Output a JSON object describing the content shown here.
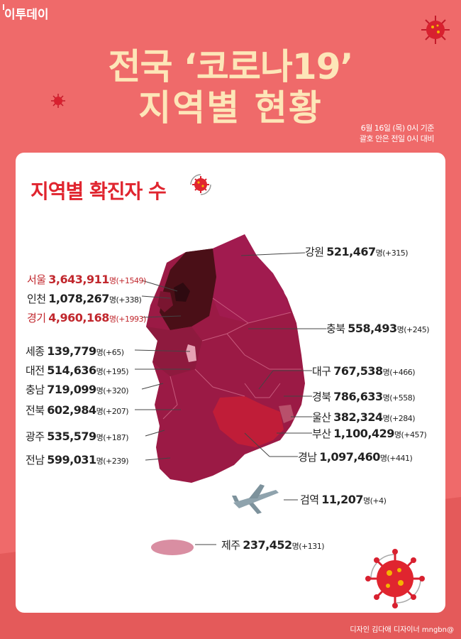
{
  "brand": "이투데이",
  "title_line1": "전국 ‘코로나19’",
  "title_line2": "지역별 현황",
  "note_line1": "6월 16일 (목) 0시 기준",
  "note_line2": "괄호 안은 전일 0시 대비",
  "card_title": "지역별 확진자 수",
  "unit": "명",
  "regions": [
    {
      "name": "서울",
      "count": "3,643,911",
      "diff": "(+1549)",
      "highlight": true
    },
    {
      "name": "인천",
      "count": "1,078,267",
      "diff": "(+338)",
      "highlight": false
    },
    {
      "name": "경기",
      "count": "4,960,168",
      "diff": "(+1993)",
      "highlight": true
    },
    {
      "name": "세종",
      "count": "139,779",
      "diff": "(+65)",
      "highlight": false
    },
    {
      "name": "대전",
      "count": "514,636",
      "diff": "(+195)",
      "highlight": false
    },
    {
      "name": "충남",
      "count": "719,099",
      "diff": "(+320)",
      "highlight": false
    },
    {
      "name": "전북",
      "count": "602,984",
      "diff": "(+207)",
      "highlight": false
    },
    {
      "name": "광주",
      "count": "535,579",
      "diff": "(+187)",
      "highlight": false
    },
    {
      "name": "전남",
      "count": "599,031",
      "diff": "(+239)",
      "highlight": false
    },
    {
      "name": "강원",
      "count": "521,467",
      "diff": "(+315)",
      "highlight": false
    },
    {
      "name": "충북",
      "count": "558,493",
      "diff": "(+245)",
      "highlight": false
    },
    {
      "name": "대구",
      "count": "767,538",
      "diff": "(+466)",
      "highlight": false
    },
    {
      "name": "경북",
      "count": "786,633",
      "diff": "(+558)",
      "highlight": false
    },
    {
      "name": "울산",
      "count": "382,324",
      "diff": "(+284)",
      "highlight": false
    },
    {
      "name": "부산",
      "count": "1,100,429",
      "diff": "(+457)",
      "highlight": false
    },
    {
      "name": "경남",
      "count": "1,097,460",
      "diff": "(+441)",
      "highlight": false
    },
    {
      "name": "검역",
      "count": "11,207",
      "diff": "(+4)",
      "highlight": false
    },
    {
      "name": "제주",
      "count": "237,452",
      "diff": "(+131)",
      "highlight": false
    }
  ],
  "credit": "디자인 김다애 디자이너 mngbn@",
  "colors": {
    "background": "#ef6a6a",
    "title": "#fde6b8",
    "accent": "#e0252f",
    "map_dark": "#4a0f17",
    "map_main": "#9b1a45",
    "map_light": "#e6a2b4"
  },
  "icons": [
    "virus-icon",
    "airplane-icon"
  ]
}
